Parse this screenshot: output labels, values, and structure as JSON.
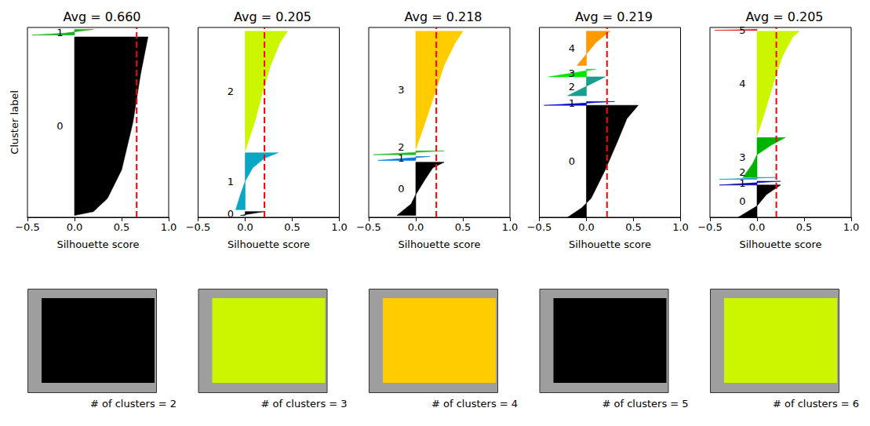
{
  "chart_data": [
    {
      "type": "silhouette",
      "title": "Avg = 0.660",
      "average": 0.66,
      "xlabel": "Silhouette score",
      "ylabel": "Cluster label",
      "caption": "# of clusters = 2",
      "xlim": [
        -0.5,
        1.0
      ],
      "xticks": [
        {
          "value": -0.5,
          "label": "−0.5"
        },
        {
          "value": 0,
          "label": "0.0"
        },
        {
          "value": 0.5,
          "label": "0.5"
        },
        {
          "value": 1.0,
          "label": "1.0"
        }
      ],
      "ylim": [
        0,
        100
      ],
      "tick_labels": "x",
      "clusters": [
        {
          "label": "0",
          "color": "#000000",
          "y": [
            1,
            3,
            10,
            25,
            50,
            75,
            95
          ],
          "values": [
            0.0,
            0.2,
            0.35,
            0.5,
            0.62,
            0.7,
            0.78
          ]
        },
        {
          "label": "1",
          "color": "#1fb01f",
          "y": [
            96,
            97,
            98,
            99
          ],
          "values": [
            -0.45,
            -0.1,
            0.05,
            0.2
          ]
        }
      ]
    },
    {
      "type": "silhouette",
      "title": "Avg = 0.205",
      "average": 0.205,
      "xlabel": "Silhouette score",
      "caption": "# of clusters = 3",
      "xlim": [
        -0.5,
        1.0
      ],
      "xticks": [
        {
          "value": -0.5,
          "label": "−0.5"
        },
        {
          "value": 0,
          "label": "0.0"
        },
        {
          "value": 0.5,
          "label": "0.5"
        },
        {
          "value": 1.0,
          "label": "1.0"
        }
      ],
      "ylim": [
        0,
        100
      ],
      "tick_labels": "x",
      "clusters": [
        {
          "label": "0",
          "color": "#000000",
          "y": [
            1,
            3
          ],
          "values": [
            -0.05,
            0.2
          ]
        },
        {
          "label": "1",
          "color": "#0aa6c6",
          "y": [
            4,
            12,
            19,
            26,
            31,
            34
          ],
          "values": [
            -0.1,
            -0.05,
            0.0,
            0.08,
            0.2,
            0.35
          ]
        },
        {
          "label": "2",
          "color": "#ccf500",
          "y": [
            35,
            50,
            65,
            80,
            92,
            98
          ],
          "values": [
            0.0,
            0.1,
            0.18,
            0.27,
            0.37,
            0.45
          ]
        }
      ]
    },
    {
      "type": "silhouette",
      "title": "Avg = 0.218",
      "average": 0.218,
      "xlabel": "Silhouette score",
      "caption": "# of clusters = 4",
      "xlim": [
        -0.5,
        1.0
      ],
      "xticks": [
        {
          "value": -0.5,
          "label": "−0.5"
        },
        {
          "value": 0,
          "label": "0.0"
        },
        {
          "value": 0.5,
          "label": "0.5"
        },
        {
          "value": 1.0,
          "label": "1.0"
        }
      ],
      "ylim": [
        0,
        100
      ],
      "tick_labels": "x",
      "clusters": [
        {
          "label": "0",
          "color": "#000000",
          "y": [
            1,
            7,
            12,
            20,
            26,
            29
          ],
          "values": [
            -0.2,
            -0.05,
            0.0,
            0.1,
            0.18,
            0.3
          ]
        },
        {
          "label": "1",
          "color": "#0077dd",
          "y": [
            30,
            32
          ],
          "values": [
            -0.4,
            0.15
          ]
        },
        {
          "label": "2",
          "color": "#22bb22",
          "y": [
            33,
            35
          ],
          "values": [
            -0.45,
            0.3
          ]
        },
        {
          "label": "3",
          "color": "#ffcc00",
          "y": [
            36,
            50,
            65,
            80,
            92,
            98
          ],
          "values": [
            0.0,
            0.1,
            0.2,
            0.3,
            0.42,
            0.5
          ]
        }
      ]
    },
    {
      "type": "silhouette",
      "title": "Avg = 0.219",
      "average": 0.219,
      "xlabel": "Silhouette score",
      "caption": "# of clusters = 5",
      "xlim": [
        -0.5,
        1.0
      ],
      "xticks": [
        {
          "value": -0.5,
          "label": "−0.5"
        },
        {
          "value": 0,
          "label": "0.0"
        },
        {
          "value": 0.5,
          "label": "0.5"
        },
        {
          "value": 1.0,
          "label": "1.0"
        }
      ],
      "ylim": [
        0,
        100
      ],
      "tick_labels": "x",
      "clusters": [
        {
          "label": "0",
          "color": "#000000",
          "y": [
            0,
            5,
            10,
            25,
            40,
            52,
            59
          ],
          "values": [
            -0.2,
            -0.05,
            0.05,
            0.2,
            0.33,
            0.43,
            0.55
          ]
        },
        {
          "label": "1",
          "color": "#0000cc",
          "y": [
            59,
            61
          ],
          "values": [
            -0.45,
            0.3
          ]
        },
        {
          "label": "2",
          "color": "#14a08c",
          "y": [
            64,
            69,
            74
          ],
          "values": [
            -0.2,
            0.0,
            0.2
          ]
        },
        {
          "label": "3",
          "color": "#00e600",
          "y": [
            74,
            78
          ],
          "values": [
            -0.4,
            0.1
          ]
        },
        {
          "label": "4",
          "color": "#ff9900",
          "y": [
            80,
            86,
            92,
            98
          ],
          "values": [
            -0.1,
            0.0,
            0.1,
            0.25
          ]
        }
      ]
    },
    {
      "type": "silhouette",
      "title": "Avg = 0.205",
      "average": 0.205,
      "xlabel": "Silhouette score",
      "caption": "# of clusters = 6",
      "xlim": [
        -0.5,
        1.0
      ],
      "xticks": [
        {
          "value": -0.5,
          "label": "−0.5"
        },
        {
          "value": 0,
          "label": "0.0"
        },
        {
          "value": 0.5,
          "label": "0.5"
        },
        {
          "value": 1.0,
          "label": "1.0"
        }
      ],
      "ylim": [
        0,
        100
      ],
      "tick_labels": "x",
      "clusters": [
        {
          "label": "0",
          "color": "#000000",
          "y": [
            0,
            6,
            12,
            17
          ],
          "values": [
            -0.2,
            0.0,
            0.1,
            0.25
          ]
        },
        {
          "label": "1",
          "color": "#0000b8",
          "y": [
            17,
            19
          ],
          "values": [
            -0.4,
            0.25
          ]
        },
        {
          "label": "2",
          "color": "#0a8fd4",
          "y": [
            20,
            21
          ],
          "values": [
            -0.4,
            0.2
          ]
        },
        {
          "label": "3",
          "color": "#00b300",
          "y": [
            21,
            28,
            33,
            38,
            42
          ],
          "values": [
            -0.15,
            -0.05,
            0.0,
            0.15,
            0.3
          ]
        },
        {
          "label": "4",
          "color": "#ccf500",
          "y": [
            43,
            55,
            70,
            85,
            95,
            98
          ],
          "values": [
            0.0,
            0.08,
            0.17,
            0.27,
            0.38,
            0.45
          ]
        },
        {
          "label": "5",
          "color": "#e60000",
          "y": [
            98.5,
            99
          ],
          "values": [
            -0.45,
            0.0
          ]
        }
      ]
    }
  ]
}
